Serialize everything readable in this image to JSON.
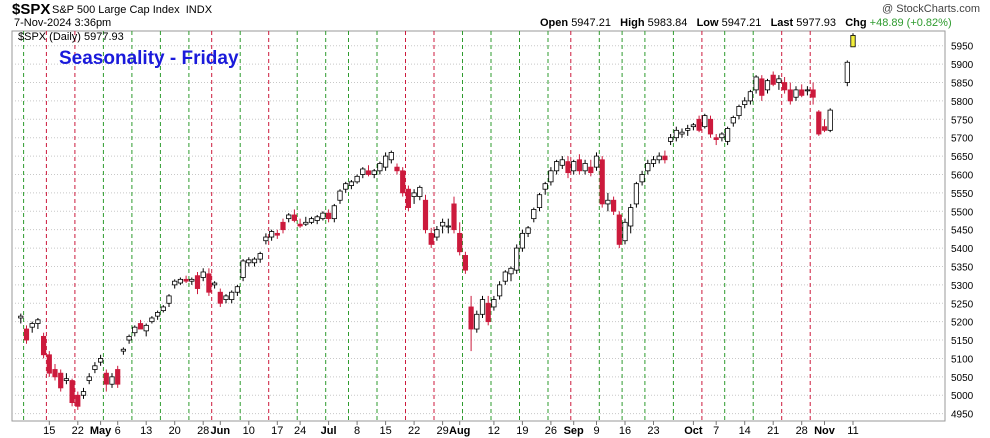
{
  "header": {
    "symbol": "$SPX",
    "name": "S&P 500 Large Cap Index",
    "exchange": "INDX",
    "datetime": "7-Nov-2024 3:36pm",
    "open_label": "Open",
    "open": "5947.21",
    "high_label": "High",
    "high": "5983.84",
    "low_label": "Low",
    "low": "5947.21",
    "last_label": "Last",
    "last": "5977.93",
    "chg_label": "Chg",
    "chg": "+48.89 (+0.82%)",
    "credit": "@ StockCharts.com"
  },
  "legend": {
    "text": "$SPX (Daily) 5977.93"
  },
  "annotation": {
    "text": "Seasonality - Friday",
    "color": "#1a1adb"
  },
  "colors": {
    "up": "#ffffff",
    "down": "#cc1a3c",
    "up_border": "#000000",
    "green_line": "#2e9b2e",
    "red_line": "#cc1a3c",
    "grid": "#c8c8c8",
    "last_bar": "#f3ef3c"
  },
  "chart_data": {
    "type": "candlestick",
    "title": "Seasonality - Friday",
    "ylim": [
      4930,
      5990
    ],
    "yticks": [
      4950,
      5000,
      5050,
      5100,
      5150,
      5200,
      5250,
      5300,
      5350,
      5400,
      5450,
      5500,
      5550,
      5600,
      5650,
      5700,
      5750,
      5800,
      5850,
      5900,
      5950
    ],
    "xlabels": [
      {
        "i": 5,
        "t": "15",
        "b": false
      },
      {
        "i": 10,
        "t": "22",
        "b": false
      },
      {
        "i": 14,
        "t": "May",
        "b": true
      },
      {
        "i": 17,
        "t": "6",
        "b": false
      },
      {
        "i": 22,
        "t": "13",
        "b": false
      },
      {
        "i": 27,
        "t": "20",
        "b": false
      },
      {
        "i": 32,
        "t": "28",
        "b": false
      },
      {
        "i": 35,
        "t": "Jun",
        "b": true
      },
      {
        "i": 40,
        "t": "10",
        "b": false
      },
      {
        "i": 45,
        "t": "17",
        "b": false
      },
      {
        "i": 49,
        "t": "24",
        "b": false
      },
      {
        "i": 54,
        "t": "Jul",
        "b": true
      },
      {
        "i": 59,
        "t": "8",
        "b": false
      },
      {
        "i": 64,
        "t": "15",
        "b": false
      },
      {
        "i": 69,
        "t": "22",
        "b": false
      },
      {
        "i": 74,
        "t": "29",
        "b": false
      },
      {
        "i": 77,
        "t": "Aug",
        "b": true
      },
      {
        "i": 83,
        "t": "12",
        "b": false
      },
      {
        "i": 88,
        "t": "19",
        "b": false
      },
      {
        "i": 93,
        "t": "26",
        "b": false
      },
      {
        "i": 97,
        "t": "Sep",
        "b": true
      },
      {
        "i": 101,
        "t": "9",
        "b": false
      },
      {
        "i": 106,
        "t": "16",
        "b": false
      },
      {
        "i": 111,
        "t": "23",
        "b": false
      },
      {
        "i": 118,
        "t": "Oct",
        "b": true
      },
      {
        "i": 122,
        "t": "7",
        "b": false
      },
      {
        "i": 127,
        "t": "14",
        "b": false
      },
      {
        "i": 132,
        "t": "21",
        "b": false
      },
      {
        "i": 137,
        "t": "28",
        "b": false
      },
      {
        "i": 141,
        "t": "Nov",
        "b": true
      },
      {
        "i": 146,
        "t": "11",
        "b": false
      }
    ],
    "green_fridays": [
      0,
      14,
      19,
      24,
      29,
      38,
      48,
      53,
      57,
      62,
      77,
      82,
      87,
      92,
      101,
      105,
      109,
      114,
      123,
      128
    ],
    "red_fridays": [
      4,
      9,
      33,
      43,
      67,
      72,
      96,
      119,
      133,
      138
    ],
    "candles": [
      [
        5210,
        5222,
        5195,
        5215
      ],
      [
        5180,
        5190,
        5140,
        5150
      ],
      [
        5185,
        5200,
        5170,
        5195
      ],
      [
        5195,
        5210,
        5180,
        5205
      ],
      [
        5160,
        5170,
        5100,
        5110
      ],
      [
        5110,
        5120,
        5050,
        5060
      ],
      [
        5070,
        5085,
        5040,
        5050
      ],
      [
        5060,
        5070,
        5010,
        5020
      ],
      [
        5040,
        5060,
        5030,
        5045
      ],
      [
        5040,
        5045,
        4970,
        4980
      ],
      [
        5000,
        5010,
        4960,
        4970
      ],
      [
        5000,
        5020,
        4990,
        5010
      ],
      [
        5040,
        5060,
        5030,
        5050
      ],
      [
        5070,
        5090,
        5060,
        5080
      ],
      [
        5090,
        5110,
        5080,
        5100
      ],
      [
        5060,
        5070,
        5010,
        5030
      ],
      [
        5030,
        5060,
        5020,
        5050
      ],
      [
        5070,
        5080,
        5020,
        5030
      ],
      [
        5120,
        5130,
        5110,
        5125
      ],
      [
        5150,
        5165,
        5140,
        5160
      ],
      [
        5170,
        5190,
        5160,
        5185
      ],
      [
        5195,
        5205,
        5180,
        5180
      ],
      [
        5175,
        5195,
        5160,
        5190
      ],
      [
        5200,
        5215,
        5195,
        5210
      ],
      [
        5215,
        5230,
        5205,
        5225
      ],
      [
        5230,
        5245,
        5225,
        5240
      ],
      [
        5250,
        5275,
        5240,
        5270
      ],
      [
        5300,
        5315,
        5290,
        5310
      ],
      [
        5305,
        5320,
        5300,
        5315
      ],
      [
        5315,
        5325,
        5305,
        5310
      ],
      [
        5310,
        5320,
        5300,
        5315
      ],
      [
        5325,
        5335,
        5275,
        5290
      ],
      [
        5320,
        5345,
        5310,
        5335
      ],
      [
        5330,
        5345,
        5270,
        5280
      ],
      [
        5300,
        5310,
        5290,
        5305
      ],
      [
        5280,
        5290,
        5240,
        5250
      ],
      [
        5260,
        5275,
        5250,
        5270
      ],
      [
        5260,
        5285,
        5250,
        5280
      ],
      [
        5280,
        5300,
        5270,
        5295
      ],
      [
        5320,
        5370,
        5310,
        5365
      ],
      [
        5360,
        5375,
        5350,
        5368
      ],
      [
        5360,
        5375,
        5350,
        5370
      ],
      [
        5370,
        5390,
        5360,
        5385
      ],
      [
        5420,
        5440,
        5410,
        5430
      ],
      [
        5430,
        5450,
        5420,
        5445
      ],
      [
        5440,
        5450,
        5425,
        5435
      ],
      [
        5470,
        5480,
        5440,
        5450
      ],
      [
        5480,
        5495,
        5470,
        5490
      ],
      [
        5490,
        5505,
        5470,
        5475
      ],
      [
        5465,
        5480,
        5455,
        5460
      ],
      [
        5465,
        5485,
        5460,
        5470
      ],
      [
        5470,
        5485,
        5465,
        5480
      ],
      [
        5475,
        5490,
        5465,
        5485
      ],
      [
        5480,
        5500,
        5475,
        5495
      ],
      [
        5495,
        5505,
        5470,
        5480
      ],
      [
        5480,
        5520,
        5470,
        5515
      ],
      [
        5530,
        5560,
        5520,
        5555
      ],
      [
        5560,
        5580,
        5550,
        5575
      ],
      [
        5570,
        5585,
        5560,
        5580
      ],
      [
        5580,
        5600,
        5575,
        5595
      ],
      [
        5600,
        5620,
        5590,
        5615
      ],
      [
        5610,
        5625,
        5595,
        5600
      ],
      [
        5600,
        5615,
        5590,
        5610
      ],
      [
        5610,
        5635,
        5600,
        5630
      ],
      [
        5620,
        5660,
        5610,
        5650
      ],
      [
        5640,
        5665,
        5630,
        5660
      ],
      [
        5620,
        5630,
        5600,
        5610
      ],
      [
        5610,
        5620,
        5540,
        5550
      ],
      [
        5560,
        5570,
        5500,
        5510
      ],
      [
        5540,
        5560,
        5520,
        5550
      ],
      [
        5540,
        5570,
        5530,
        5565
      ],
      [
        5530,
        5545,
        5440,
        5450
      ],
      [
        5440,
        5455,
        5400,
        5410
      ],
      [
        5430,
        5460,
        5420,
        5450
      ],
      [
        5460,
        5480,
        5440,
        5470
      ],
      [
        5460,
        5480,
        5440,
        5460
      ],
      [
        5520,
        5540,
        5440,
        5450
      ],
      [
        5440,
        5470,
        5380,
        5390
      ],
      [
        5380,
        5390,
        5330,
        5340
      ],
      [
        5240,
        5270,
        5120,
        5180
      ],
      [
        5180,
        5230,
        5170,
        5220
      ],
      [
        5220,
        5270,
        5210,
        5260
      ],
      [
        5250,
        5270,
        5190,
        5200
      ],
      [
        5240,
        5270,
        5230,
        5260
      ],
      [
        5270,
        5310,
        5260,
        5300
      ],
      [
        5310,
        5340,
        5300,
        5335
      ],
      [
        5330,
        5350,
        5310,
        5345
      ],
      [
        5340,
        5410,
        5330,
        5400
      ],
      [
        5400,
        5450,
        5390,
        5440
      ],
      [
        5440,
        5460,
        5430,
        5455
      ],
      [
        5480,
        5510,
        5470,
        5505
      ],
      [
        5510,
        5550,
        5500,
        5545
      ],
      [
        5560,
        5580,
        5545,
        5575
      ],
      [
        5580,
        5620,
        5570,
        5610
      ],
      [
        5610,
        5640,
        5600,
        5635
      ],
      [
        5625,
        5650,
        5615,
        5640
      ],
      [
        5635,
        5650,
        5590,
        5605
      ],
      [
        5610,
        5640,
        5600,
        5635
      ],
      [
        5640,
        5655,
        5600,
        5610
      ],
      [
        5610,
        5640,
        5600,
        5630
      ],
      [
        5620,
        5640,
        5595,
        5605
      ],
      [
        5620,
        5660,
        5610,
        5650
      ],
      [
        5640,
        5650,
        5510,
        5520
      ],
      [
        5520,
        5550,
        5500,
        5530
      ],
      [
        5530,
        5540,
        5490,
        5500
      ],
      [
        5490,
        5500,
        5400,
        5410
      ],
      [
        5420,
        5480,
        5410,
        5470
      ],
      [
        5460,
        5520,
        5440,
        5510
      ],
      [
        5520,
        5580,
        5510,
        5575
      ],
      [
        5580,
        5610,
        5570,
        5600
      ],
      [
        5610,
        5640,
        5600,
        5630
      ],
      [
        5630,
        5650,
        5620,
        5640
      ],
      [
        5640,
        5660,
        5630,
        5650
      ],
      [
        5650,
        5665,
        5630,
        5640
      ],
      [
        5690,
        5710,
        5680,
        5700
      ],
      [
        5700,
        5730,
        5690,
        5720
      ],
      [
        5710,
        5725,
        5700,
        5715
      ],
      [
        5720,
        5735,
        5705,
        5725
      ],
      [
        5730,
        5740,
        5720,
        5735
      ],
      [
        5750,
        5760,
        5715,
        5720
      ],
      [
        5730,
        5765,
        5725,
        5760
      ],
      [
        5750,
        5760,
        5700,
        5710
      ],
      [
        5700,
        5710,
        5680,
        5695
      ],
      [
        5700,
        5715,
        5690,
        5710
      ],
      [
        5690,
        5730,
        5680,
        5725
      ],
      [
        5740,
        5760,
        5730,
        5755
      ],
      [
        5760,
        5790,
        5750,
        5785
      ],
      [
        5790,
        5810,
        5780,
        5800
      ],
      [
        5800,
        5830,
        5790,
        5825
      ],
      [
        5830,
        5870,
        5820,
        5865
      ],
      [
        5860,
        5870,
        5800,
        5815
      ],
      [
        5830,
        5860,
        5820,
        5855
      ],
      [
        5870,
        5880,
        5840,
        5845
      ],
      [
        5850,
        5870,
        5830,
        5860
      ],
      [
        5850,
        5865,
        5820,
        5830
      ],
      [
        5830,
        5850,
        5790,
        5800
      ],
      [
        5810,
        5840,
        5800,
        5830
      ],
      [
        5830,
        5845,
        5810,
        5815
      ],
      [
        5830,
        5840,
        5815,
        5830
      ],
      [
        5830,
        5850,
        5790,
        5810
      ],
      [
        5770,
        5775,
        5705,
        5710
      ],
      [
        5730,
        5750,
        5715,
        5720
      ],
      [
        5720,
        5780,
        5715,
        5775
      ],
      null,
      null,
      [
        5850,
        5910,
        5840,
        5905
      ],
      [
        5947,
        5984,
        5947,
        5978
      ]
    ]
  }
}
